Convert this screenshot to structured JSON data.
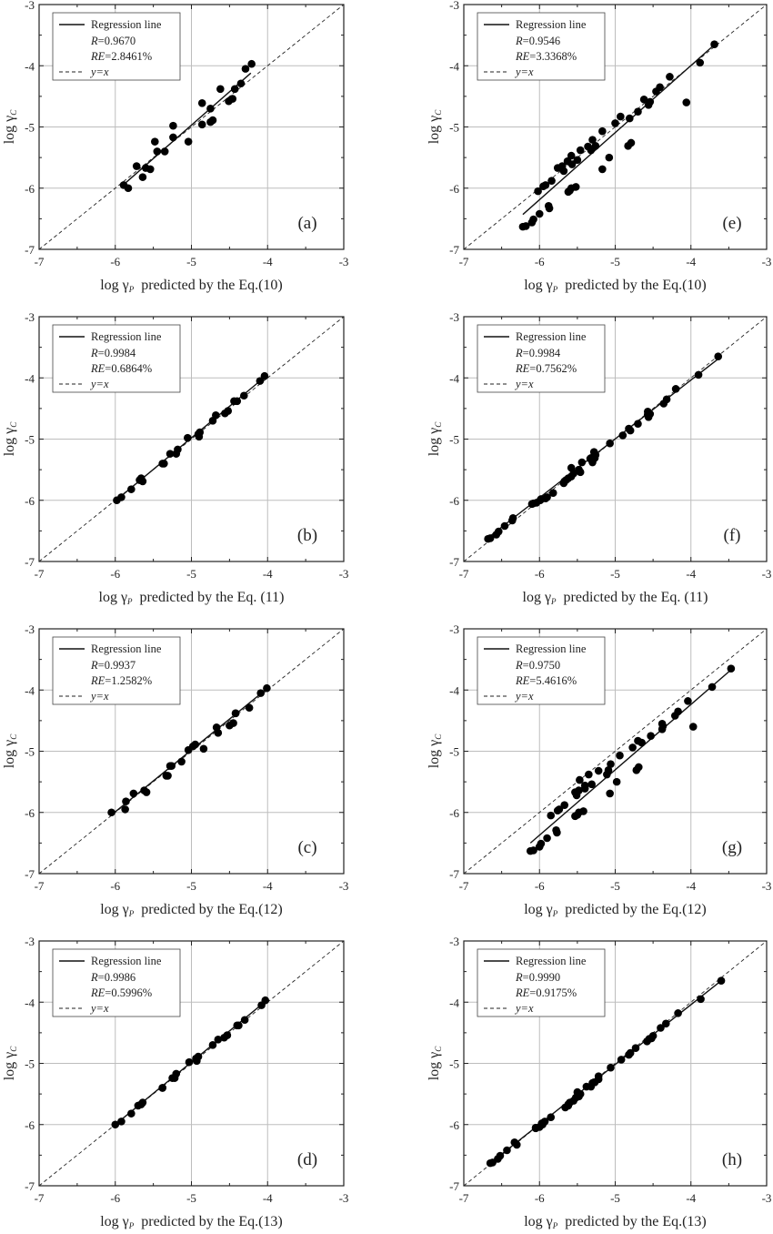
{
  "chart_data": [
    {
      "id": "a",
      "type": "scatter",
      "panel_label": "(a)",
      "xlabel_prefix": "log γ",
      "xlabel_sub": "P",
      "xlabel_suffix": "predicted by the Eq.(10)",
      "ylabel_prefix": "log γ",
      "ylabel_sub": "C",
      "xlim": [
        -7,
        -3
      ],
      "ylim": [
        -7,
        -3
      ],
      "xticks": [
        -7,
        -6,
        -5,
        -4,
        -3
      ],
      "yticks": [
        -7,
        -6,
        -5,
        -4,
        -3
      ],
      "grid": true,
      "legend_position": "top-left",
      "legend": {
        "regression_label": "Regression line",
        "r_label": "R",
        "r_value": "=0.9670",
        "re_label": "RE",
        "re_value": "=2.8461%",
        "yx_label": "y=x"
      },
      "regression_line": [
        [
          -5.88,
          -5.93
        ],
        [
          -4.22,
          -4.12
        ]
      ],
      "x": [
        -5.89,
        -5.83,
        -5.72,
        -5.64,
        -5.6,
        -5.54,
        -5.48,
        -5.45,
        -5.35,
        -5.24,
        -5.24,
        -5.04,
        -4.86,
        -4.86,
        -4.75,
        -4.75,
        -4.72,
        -4.62,
        -4.51,
        -4.46,
        -4.43,
        -4.35,
        -4.29,
        -4.21
      ],
      "y": [
        -5.95,
        -6.0,
        -5.64,
        -5.82,
        -5.67,
        -5.69,
        -5.24,
        -5.4,
        -5.4,
        -4.98,
        -5.17,
        -5.24,
        -4.61,
        -4.96,
        -4.7,
        -4.92,
        -4.89,
        -4.38,
        -4.58,
        -4.54,
        -4.38,
        -4.29,
        -4.05,
        -3.97
      ]
    },
    {
      "id": "b",
      "type": "scatter",
      "panel_label": "(b)",
      "xlabel_prefix": "log γ",
      "xlabel_sub": "P",
      "xlabel_suffix": "predicted by the Eq. (11)",
      "ylabel_prefix": "log γ",
      "ylabel_sub": "C",
      "xlim": [
        -7,
        -3
      ],
      "ylim": [
        -7,
        -3
      ],
      "xticks": [
        -7,
        -6,
        -5,
        -4,
        -3
      ],
      "yticks": [
        -7,
        -6,
        -5,
        -4,
        -3
      ],
      "grid": true,
      "legend_position": "top-left",
      "legend": {
        "regression_label": "Regression line",
        "r_label": "R",
        "r_value": "=0.9984",
        "re_label": "RE",
        "re_value": "=0.6864%",
        "yx_label": "y=x"
      },
      "regression_line": [
        [
          -5.98,
          -5.99
        ],
        [
          -4.05,
          -4.0
        ]
      ],
      "x": [
        -5.92,
        -5.98,
        -5.66,
        -5.79,
        -5.68,
        -5.64,
        -5.28,
        -5.38,
        -5.36,
        -5.05,
        -5.18,
        -5.2,
        -4.68,
        -4.9,
        -4.72,
        -4.91,
        -4.89,
        -4.44,
        -4.56,
        -4.52,
        -4.4,
        -4.31,
        -4.1,
        -4.04
      ],
      "y": [
        -5.95,
        -6.0,
        -5.64,
        -5.82,
        -5.67,
        -5.69,
        -5.24,
        -5.4,
        -5.4,
        -4.98,
        -5.17,
        -5.24,
        -4.61,
        -4.96,
        -4.7,
        -4.92,
        -4.89,
        -4.38,
        -4.58,
        -4.54,
        -4.38,
        -4.29,
        -4.05,
        -3.97
      ]
    },
    {
      "id": "c",
      "type": "scatter",
      "panel_label": "(c)",
      "xlabel_prefix": "log γ",
      "xlabel_sub": "P",
      "xlabel_suffix": "predicted by the Eq.(12)",
      "ylabel_prefix": "log γ",
      "ylabel_sub": "C",
      "xlim": [
        -7,
        -3
      ],
      "ylim": [
        -7,
        -3
      ],
      "xticks": [
        -7,
        -6,
        -5,
        -4,
        -3
      ],
      "yticks": [
        -7,
        -6,
        -5,
        -4,
        -3
      ],
      "grid": true,
      "legend_position": "top-left",
      "legend": {
        "regression_label": "Regression line",
        "r_label": "R",
        "r_value": "=0.9937",
        "re_label": "RE",
        "re_value": "=1.2582%",
        "yx_label": "y=x"
      },
      "regression_line": [
        [
          -6.03,
          -6.02
        ],
        [
          -4.03,
          -4.0
        ]
      ],
      "x": [
        -5.86,
        -6.05,
        -5.76,
        -5.87,
        -5.62,
        -5.59,
        -5.28,
        -5.33,
        -5.31,
        -5.04,
        -5.13,
        -5.26,
        -4.67,
        -4.84,
        -4.65,
        -4.98,
        -4.95,
        -4.42,
        -4.5,
        -4.45,
        -4.42,
        -4.24,
        -4.09,
        -4.01
      ],
      "y": [
        -5.82,
        -6.0,
        -5.69,
        -5.95,
        -5.64,
        -5.67,
        -5.24,
        -5.4,
        -5.4,
        -4.98,
        -5.17,
        -5.24,
        -4.61,
        -4.96,
        -4.7,
        -4.92,
        -4.89,
        -4.38,
        -4.58,
        -4.54,
        -4.38,
        -4.29,
        -4.05,
        -3.97
      ]
    },
    {
      "id": "d",
      "type": "scatter",
      "panel_label": "(d)",
      "xlabel_prefix": "log γ",
      "xlabel_sub": "P",
      "xlabel_suffix": "predicted by the Eq.(13)",
      "ylabel_prefix": "log γ",
      "ylabel_sub": "C",
      "xlim": [
        -7,
        -3
      ],
      "ylim": [
        -7,
        -3
      ],
      "xticks": [
        -7,
        -6,
        -5,
        -4,
        -3
      ],
      "yticks": [
        -7,
        -6,
        -5,
        -4,
        -3
      ],
      "grid": true,
      "legend_position": "top-left",
      "legend": {
        "regression_label": "Regression line",
        "r_label": "R",
        "r_value": "=0.9986",
        "re_label": "RE",
        "re_value": "=0.5996%",
        "yx_label": "y=x"
      },
      "regression_line": [
        [
          -6.0,
          -6.0
        ],
        [
          -4.03,
          -3.99
        ]
      ],
      "x": [
        -5.92,
        -6.0,
        -5.7,
        -5.79,
        -5.66,
        -5.64,
        -5.25,
        -5.38,
        -5.38,
        -5.03,
        -5.2,
        -5.22,
        -4.65,
        -4.93,
        -4.72,
        -4.94,
        -4.91,
        -4.4,
        -4.57,
        -4.53,
        -4.38,
        -4.3,
        -4.08,
        -4.03
      ],
      "y": [
        -5.95,
        -6.0,
        -5.69,
        -5.82,
        -5.67,
        -5.64,
        -5.24,
        -5.4,
        -5.4,
        -4.98,
        -5.17,
        -5.24,
        -4.61,
        -4.96,
        -4.7,
        -4.92,
        -4.89,
        -4.38,
        -4.58,
        -4.54,
        -4.38,
        -4.29,
        -4.05,
        -3.97
      ]
    },
    {
      "id": "e",
      "type": "scatter",
      "panel_label": "(e)",
      "xlabel_prefix": "log γ",
      "xlabel_sub": "P",
      "xlabel_suffix": "predicted by the Eq.(10)",
      "ylabel_prefix": "log γ",
      "ylabel_sub": "C",
      "xlim": [
        -7,
        -3
      ],
      "ylim": [
        -7,
        -3
      ],
      "xticks": [
        -7,
        -6,
        -5,
        -4,
        -3
      ],
      "yticks": [
        -7,
        -6,
        -5,
        -4,
        -3
      ],
      "grid": true,
      "legend_position": "top-left",
      "legend": {
        "regression_label": "Regression line",
        "r_label": "R",
        "r_value": "=0.9546",
        "re_label": "RE",
        "re_value": "=3.3368%",
        "yx_label": "y=x"
      },
      "regression_line": [
        [
          -6.22,
          -6.43
        ],
        [
          -3.72,
          -3.69
        ]
      ],
      "x": [
        -6.22,
        -6.18,
        -6.1,
        -6.08,
        -6.02,
        -6.0,
        -5.95,
        -5.92,
        -5.88,
        -5.87,
        -5.84,
        -5.76,
        -5.7,
        -5.68,
        -5.63,
        -5.62,
        -5.6,
        -5.58,
        -5.58,
        -5.57,
        -5.52,
        -5.5,
        -5.46,
        -5.36,
        -5.32,
        -5.3,
        -5.26,
        -5.17,
        -5.17,
        -5.08,
        -5.0,
        -4.93,
        -4.83,
        -4.81,
        -4.79,
        -4.7,
        -4.62,
        -4.56,
        -4.54,
        -4.46,
        -4.41,
        -4.28,
        -4.06,
        -3.88,
        -3.69
      ],
      "y": [
        -6.63,
        -6.62,
        -6.56,
        -6.51,
        -6.05,
        -6.42,
        -5.97,
        -5.95,
        -6.29,
        -6.33,
        -5.88,
        -5.67,
        -5.64,
        -5.72,
        -5.56,
        -6.06,
        -6.04,
        -6.0,
        -5.47,
        -5.61,
        -5.98,
        -5.54,
        -5.38,
        -5.32,
        -5.38,
        -5.21,
        -5.31,
        -5.07,
        -5.69,
        -5.5,
        -4.94,
        -4.83,
        -5.31,
        -4.86,
        -5.26,
        -4.75,
        -4.55,
        -4.64,
        -4.59,
        -4.42,
        -4.35,
        -4.18,
        -4.6,
        -3.95,
        -3.65
      ]
    },
    {
      "id": "f",
      "type": "scatter",
      "panel_label": "(f)",
      "xlabel_prefix": "log γ",
      "xlabel_sub": "P",
      "xlabel_suffix": "predicted by the Eq. (11)",
      "ylabel_prefix": "log γ",
      "ylabel_sub": "C",
      "xlim": [
        -7,
        -3
      ],
      "ylim": [
        -7,
        -3
      ],
      "xticks": [
        -7,
        -6,
        -5,
        -4,
        -3
      ],
      "yticks": [
        -7,
        -6,
        -5,
        -4,
        -3
      ],
      "grid": true,
      "legend_position": "top-left",
      "legend": {
        "regression_label": "Regression line",
        "r_label": "R",
        "r_value": "=0.9984",
        "re_label": "RE",
        "re_value": "=0.7562%",
        "yx_label": "y=x"
      },
      "regression_line": [
        [
          -6.7,
          -6.63
        ],
        [
          -3.65,
          -3.7
        ]
      ],
      "x": [
        -6.68,
        -6.65,
        -6.57,
        -6.54,
        -6.08,
        -6.46,
        -5.92,
        -5.9,
        -6.35,
        -6.36,
        -5.82,
        -5.65,
        -5.62,
        -5.68,
        -5.55,
        -6.1,
        -6.04,
        -5.99,
        -5.58,
        -5.58,
        -5.98,
        -5.46,
        -5.44,
        -5.33,
        -5.3,
        -5.28,
        -5.27,
        -5.07,
        -5.67,
        -5.48,
        -4.9,
        -4.82,
        -5.32,
        -4.8,
        -5.26,
        -4.7,
        -4.57,
        -4.56,
        -4.54,
        -4.36,
        -4.32,
        -4.2,
        -4.57,
        -3.9,
        -3.64
      ],
      "y": [
        -6.63,
        -6.62,
        -6.56,
        -6.51,
        -6.05,
        -6.42,
        -5.97,
        -5.95,
        -6.29,
        -6.33,
        -5.88,
        -5.67,
        -5.64,
        -5.72,
        -5.56,
        -6.06,
        -6.04,
        -6.0,
        -5.47,
        -5.61,
        -5.98,
        -5.54,
        -5.38,
        -5.32,
        -5.38,
        -5.21,
        -5.31,
        -5.07,
        -5.69,
        -5.5,
        -4.94,
        -4.83,
        -5.31,
        -4.86,
        -5.26,
        -4.75,
        -4.55,
        -4.64,
        -4.59,
        -4.42,
        -4.35,
        -4.18,
        -4.6,
        -3.95,
        -3.65
      ]
    },
    {
      "id": "g",
      "type": "scatter",
      "panel_label": "(g)",
      "xlabel_prefix": "log γ",
      "xlabel_sub": "P",
      "xlabel_suffix": "predicted by the Eq.(12)",
      "ylabel_prefix": "log γ",
      "ylabel_sub": "C",
      "xlim": [
        -7,
        -3
      ],
      "ylim": [
        -7,
        -3
      ],
      "xticks": [
        -7,
        -6,
        -5,
        -4,
        -3
      ],
      "yticks": [
        -7,
        -6,
        -5,
        -4,
        -3
      ],
      "grid": true,
      "legend_position": "top-left",
      "legend": {
        "regression_label": "Regression line",
        "r_label": "R",
        "r_value": "=0.9750",
        "re_label": "RE",
        "re_value": "=5.4616%",
        "yx_label": "y=x"
      },
      "regression_line": [
        [
          -6.12,
          -6.5
        ],
        [
          -3.48,
          -3.68
        ]
      ],
      "x": [
        -6.12,
        -6.08,
        -6.0,
        -5.98,
        -5.85,
        -5.9,
        -5.76,
        -5.74,
        -5.78,
        -5.77,
        -5.67,
        -5.53,
        -5.48,
        -5.51,
        -5.4,
        -5.53,
        -5.5,
        -5.48,
        -5.47,
        -5.4,
        -5.42,
        -5.31,
        -5.35,
        -5.22,
        -5.11,
        -5.06,
        -5.09,
        -4.94,
        -5.07,
        -4.98,
        -4.77,
        -4.7,
        -4.72,
        -4.65,
        -4.69,
        -4.53,
        -4.38,
        -4.38,
        -4.37,
        -4.21,
        -4.17,
        -4.04,
        -3.97,
        -3.72,
        -3.47
      ],
      "y": [
        -6.63,
        -6.62,
        -6.56,
        -6.51,
        -6.05,
        -6.42,
        -5.97,
        -5.95,
        -6.29,
        -6.33,
        -5.88,
        -5.67,
        -5.64,
        -5.72,
        -5.56,
        -6.06,
        -6.04,
        -6.0,
        -5.47,
        -5.61,
        -5.98,
        -5.54,
        -5.38,
        -5.32,
        -5.38,
        -5.21,
        -5.31,
        -5.07,
        -5.69,
        -5.5,
        -4.94,
        -4.83,
        -5.31,
        -4.86,
        -5.26,
        -4.75,
        -4.55,
        -4.64,
        -4.59,
        -4.42,
        -4.35,
        -4.18,
        -4.6,
        -3.95,
        -3.65
      ]
    },
    {
      "id": "h",
      "type": "scatter",
      "panel_label": "(h)",
      "xlabel_prefix": "log γ",
      "xlabel_sub": "P",
      "xlabel_suffix": "predicted by the Eq.(13)",
      "ylabel_prefix": "log γ",
      "ylabel_sub": "C",
      "xlim": [
        -7,
        -3
      ],
      "ylim": [
        -7,
        -3
      ],
      "xticks": [
        -7,
        -6,
        -5,
        -4,
        -3
      ],
      "yticks": [
        -7,
        -6,
        -5,
        -4,
        -3
      ],
      "grid": true,
      "legend_position": "top-left",
      "legend": {
        "regression_label": "Regression line",
        "r_label": "R",
        "r_value": "=0.9990",
        "re_label": "RE",
        "re_value": "=0.9175%",
        "yx_label": "y=x"
      },
      "regression_line": [
        [
          -6.65,
          -6.63
        ],
        [
          -3.6,
          -3.65
        ]
      ],
      "x": [
        -6.65,
        -6.62,
        -6.55,
        -6.52,
        -6.05,
        -6.43,
        -5.95,
        -5.93,
        -6.33,
        -6.3,
        -5.85,
        -5.62,
        -5.6,
        -5.66,
        -5.52,
        -6.05,
        -6.0,
        -5.96,
        -5.5,
        -5.55,
        -5.97,
        -5.48,
        -5.38,
        -5.3,
        -5.32,
        -5.22,
        -5.28,
        -5.06,
        -5.62,
        -5.46,
        -4.92,
        -4.8,
        -5.27,
        -4.82,
        -5.22,
        -4.73,
        -4.5,
        -4.58,
        -4.52,
        -4.4,
        -4.33,
        -4.17,
        -4.55,
        -3.87,
        -3.6
      ],
      "y": [
        -6.63,
        -6.62,
        -6.56,
        -6.51,
        -6.05,
        -6.42,
        -5.97,
        -5.95,
        -6.29,
        -6.33,
        -5.88,
        -5.67,
        -5.64,
        -5.72,
        -5.56,
        -6.06,
        -6.04,
        -6.0,
        -5.47,
        -5.61,
        -5.98,
        -5.54,
        -5.38,
        -5.32,
        -5.38,
        -5.21,
        -5.31,
        -5.07,
        -5.69,
        -5.5,
        -4.94,
        -4.83,
        -5.31,
        -4.86,
        -5.26,
        -4.75,
        -4.55,
        -4.64,
        -4.59,
        -4.42,
        -4.35,
        -4.18,
        -4.6,
        -3.95,
        -3.65
      ]
    }
  ]
}
